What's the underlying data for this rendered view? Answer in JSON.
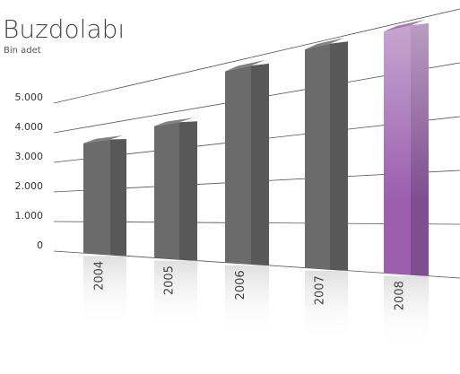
{
  "chart_data": {
    "type": "bar",
    "title": "Buzdolabı",
    "subtitle": "Bin adet",
    "categories": [
      "2004",
      "2005",
      "2006",
      "2007",
      "2008"
    ],
    "values": [
      3500,
      3700,
      4800,
      4900,
      4900
    ],
    "colors": [
      "#6b6b6b",
      "#6b6b6b",
      "#6b6b6b",
      "#6b6b6b",
      "#9b5fae"
    ],
    "ylim": [
      0,
      6000
    ],
    "yticks": [
      0,
      {
        "value": 1000,
        "label": "1.000"
      },
      {
        "value": 2000,
        "label": "2.000"
      },
      {
        "value": 3000,
        "label": "3.000"
      },
      {
        "value": 4000,
        "label": "4.000"
      },
      {
        "value": 5000,
        "label": "5.000"
      }
    ],
    "grid": true
  }
}
